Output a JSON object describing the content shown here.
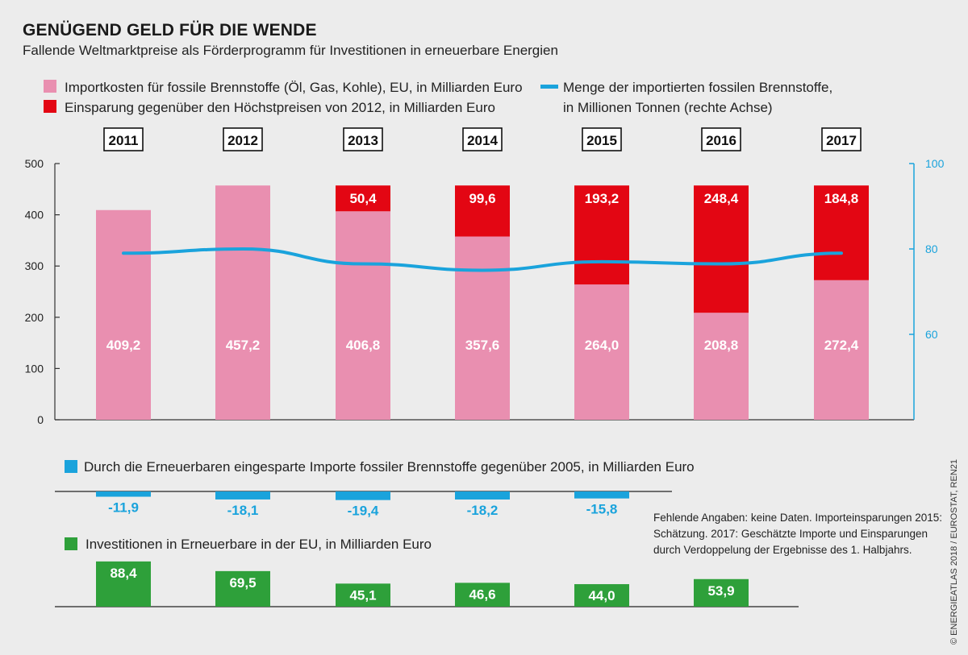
{
  "header": {
    "title": "GENÜGEND GELD FÜR DIE WENDE",
    "subtitle": "Fallende Weltmarktpreise als Förderprogramm für Investitionen in erneuerbare Energien"
  },
  "legend": {
    "import_costs": "Importkosten für fossile Brennstoffe (Öl, Gas, Kohle), EU, in Milliarden Euro",
    "savings": "Einsparung gegenüber den Höchstpreisen von 2012, in Milliarden Euro",
    "quantity_line1": "Menge der importierten fossilen Brennstoffe,",
    "quantity_line2": "in Millionen Tonnen (rechte Achse)",
    "renewables_savings": "Durch die Erneuerbaren eingesparte Importe fossiler Brennstoffe gegenüber 2005, in Milliarden Euro",
    "investments": "Investitionen in Erneuerbare in der EU, in Milliarden Euro"
  },
  "note": {
    "line1": "Fehlende Angaben: keine Daten. Importeinsparungen 2015:",
    "line2": "Schätzung. 2017: Geschätzte Importe und Einsparungen",
    "line3": "durch Verdoppelung der Ergebnisse des 1. Halbjahrs."
  },
  "source": "© ENERGIEATLAS 2018 / EUROSTAT, REN21",
  "colors": {
    "pink": "#e98fb0",
    "red": "#e30613",
    "blue": "#1aa3dc",
    "green": "#2ea03a",
    "background": "#ececec"
  },
  "chart_data": [
    {
      "type": "bar",
      "categories": [
        "2011",
        "2012",
        "2013",
        "2014",
        "2015",
        "2016",
        "2017"
      ],
      "series": [
        {
          "name": "Importkosten für fossile Brennstoffe (Öl, Gas, Kohle), EU, in Milliarden Euro",
          "values": [
            409.2,
            457.2,
            406.8,
            357.6,
            264.0,
            208.8,
            272.4
          ],
          "labels": [
            "409,2",
            "457,2",
            "406,8",
            "357,6",
            "264,0",
            "208,8",
            "272,4"
          ]
        },
        {
          "name": "Einsparung gegenüber den Höchstpreisen von 2012, in Milliarden Euro",
          "values": [
            null,
            null,
            50.4,
            99.6,
            193.2,
            248.4,
            184.8
          ],
          "labels": [
            null,
            null,
            "50,4",
            "99,6",
            "193,2",
            "248,4",
            "184,8"
          ]
        }
      ],
      "ylim": [
        0,
        500
      ],
      "yticks": [
        0,
        100,
        200,
        300,
        400,
        500
      ],
      "ytick_labels": [
        "0",
        "100",
        "200",
        "300",
        "400",
        "500"
      ],
      "stacked": true
    },
    {
      "type": "line",
      "categories": [
        "2011",
        "2012",
        "2013",
        "2014",
        "2015",
        "2016",
        "2017"
      ],
      "series": [
        {
          "name": "Menge der importierten fossilen Brennstoffe, in Millionen Tonnen (rechte Achse)",
          "values": [
            79,
            80,
            76.5,
            75,
            77,
            76.5,
            79
          ]
        }
      ],
      "axis": "right",
      "ylim": [
        40,
        100
      ],
      "yticks": [
        60,
        80,
        100
      ],
      "ytick_labels": [
        "60",
        "80",
        "100"
      ]
    },
    {
      "type": "bar",
      "categories": [
        "2011",
        "2012",
        "2013",
        "2014",
        "2015"
      ],
      "series": [
        {
          "name": "Durch die Erneuerbaren eingesparte Importe fossiler Brennstoffe gegenüber 2005, in Milliarden Euro",
          "values": [
            -11.9,
            -18.1,
            -19.4,
            -18.2,
            -15.8
          ],
          "labels": [
            "-11,9",
            "-18,1",
            "-19,4",
            "-18,2",
            "-15,8"
          ]
        }
      ]
    },
    {
      "type": "bar",
      "categories": [
        "2011",
        "2012",
        "2013",
        "2014",
        "2015",
        "2016"
      ],
      "series": [
        {
          "name": "Investitionen in Erneuerbare in der EU, in Milliarden Euro",
          "values": [
            88.4,
            69.5,
            45.1,
            46.6,
            44.0,
            53.9
          ],
          "labels": [
            "88,4",
            "69,5",
            "45,1",
            "46,6",
            "44,0",
            "53,9"
          ]
        }
      ]
    }
  ]
}
